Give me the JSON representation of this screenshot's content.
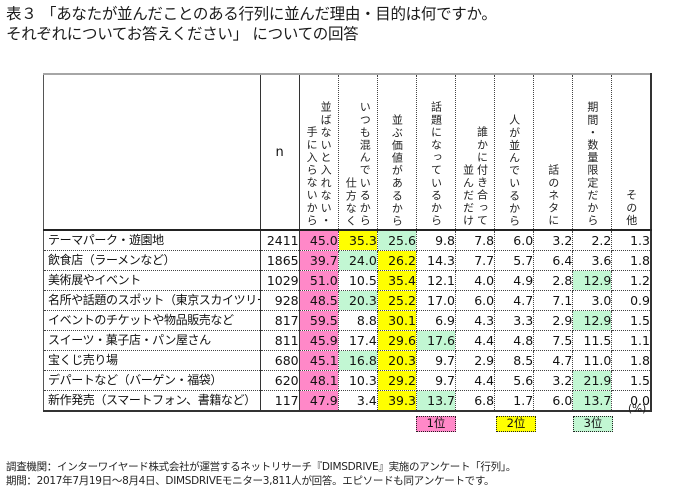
{
  "title": {
    "line1": "表３ 「あなたが並んだことのある行列に並んだ理由・目的は何ですか。",
    "line2": "それぞれについてお答えください」 についての回答"
  },
  "table": {
    "n_header": "n",
    "columns": [
      {
        "key": "c1",
        "lines": [
          "並ばないと入れない・",
          "手に入らないから"
        ]
      },
      {
        "key": "c2",
        "lines": [
          "いつも混んでいるから",
          "仕方なく"
        ]
      },
      {
        "key": "c3",
        "lines": [
          "並ぶ価値があるから"
        ]
      },
      {
        "key": "c4",
        "lines": [
          "話題になっているから"
        ]
      },
      {
        "key": "c5",
        "lines": [
          "誰かに付き合って",
          "並んだだけ"
        ]
      },
      {
        "key": "c6",
        "lines": [
          "人が並んでいるから"
        ]
      },
      {
        "key": "c7",
        "lines": [
          "話のネタに"
        ]
      },
      {
        "key": "c8",
        "lines": [
          "期間・数量限定だから"
        ]
      },
      {
        "key": "c9",
        "lines": [
          "その他"
        ]
      }
    ],
    "rows": [
      {
        "label": "テーマパーク・遊園地",
        "n": "2411",
        "values": [
          "45.0",
          "35.3",
          "25.6",
          "9.8",
          "7.8",
          "6.0",
          "3.2",
          "2.2",
          "1.3"
        ],
        "ranks": [
          1,
          2,
          3,
          0,
          0,
          0,
          0,
          0,
          0
        ]
      },
      {
        "label": "飲食店（ラーメンなど）",
        "n": "1865",
        "values": [
          "39.7",
          "24.0",
          "26.2",
          "14.3",
          "7.7",
          "5.7",
          "6.4",
          "3.6",
          "1.8"
        ],
        "ranks": [
          1,
          3,
          2,
          0,
          0,
          0,
          0,
          0,
          0
        ]
      },
      {
        "label": "美術展やイベント",
        "n": "1029",
        "values": [
          "51.0",
          "10.5",
          "35.4",
          "12.1",
          "4.0",
          "4.9",
          "2.8",
          "12.9",
          "1.2"
        ],
        "ranks": [
          1,
          0,
          2,
          0,
          0,
          0,
          0,
          3,
          0
        ]
      },
      {
        "label": "名所や話題のスポット（東京スカイツリーなど）",
        "n": "928",
        "values": [
          "48.5",
          "20.3",
          "25.2",
          "17.0",
          "6.0",
          "4.7",
          "7.1",
          "3.0",
          "0.9"
        ],
        "ranks": [
          1,
          3,
          2,
          0,
          0,
          0,
          0,
          0,
          0
        ]
      },
      {
        "label": "イベントのチケットや物品販売など",
        "n": "817",
        "values": [
          "59.5",
          "8.8",
          "30.1",
          "6.9",
          "4.3",
          "3.3",
          "2.9",
          "12.9",
          "1.5"
        ],
        "ranks": [
          1,
          0,
          2,
          0,
          0,
          0,
          0,
          3,
          0
        ]
      },
      {
        "label": "スイーツ・菓子店・パン屋さん",
        "n": "811",
        "values": [
          "45.9",
          "17.4",
          "29.6",
          "17.6",
          "4.4",
          "4.8",
          "7.5",
          "11.5",
          "1.1"
        ],
        "ranks": [
          1,
          0,
          2,
          3,
          0,
          0,
          0,
          0,
          0
        ]
      },
      {
        "label": "宝くじ売り場",
        "n": "680",
        "values": [
          "45.1",
          "16.8",
          "20.3",
          "9.7",
          "2.9",
          "8.5",
          "4.7",
          "11.0",
          "1.8"
        ],
        "ranks": [
          1,
          3,
          2,
          0,
          0,
          0,
          0,
          0,
          0
        ]
      },
      {
        "label": "デパートなど（バーゲン・福袋）",
        "n": "620",
        "values": [
          "48.1",
          "10.3",
          "29.2",
          "9.7",
          "4.4",
          "5.6",
          "3.2",
          "21.9",
          "1.5"
        ],
        "ranks": [
          1,
          0,
          2,
          0,
          0,
          0,
          0,
          3,
          0
        ]
      },
      {
        "label": "新作発売（スマートフォン、書籍など）",
        "n": "117",
        "values": [
          "47.9",
          "3.4",
          "39.3",
          "13.7",
          "6.8",
          "1.7",
          "6.0",
          "13.7",
          "0.0"
        ],
        "ranks": [
          1,
          0,
          2,
          3,
          0,
          0,
          0,
          3,
          0
        ]
      }
    ],
    "unit": "(%)"
  },
  "legend": [
    {
      "label": "1位",
      "color": "#ff88c8"
    },
    {
      "label": "2位",
      "color": "#ffff00"
    },
    {
      "label": "3位",
      "color": "#c2f7d3"
    }
  ],
  "footer": {
    "line1": "調査機関：インターワイヤード株式会社が運営するネットリサーチ『DIMSDRIVE』実施のアンケート「行列」。",
    "line2": "期間：2017年7月19日～8月4日、DIMSDRIVEモニター3,811人が回答。エピソードも同アンケートです。"
  }
}
